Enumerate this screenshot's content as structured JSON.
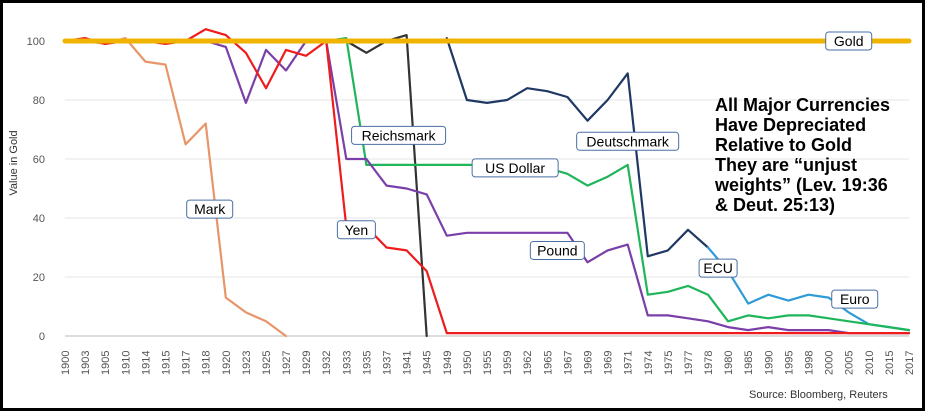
{
  "chart_data": {
    "type": "line",
    "title": "All Major Currencies Have Depreciated Relative to Gold They are “unjust weights” (Lev. 19:36 & Deut. 25:13)",
    "title_lines": [
      "All Major Currencies",
      "Have Depreciated",
      "Relative to Gold",
      "They are “unjust",
      "weights” (Lev. 19:36",
      "& Deut. 25:13)"
    ],
    "xlabel": "",
    "ylabel": "Value in Gold",
    "ylim": [
      0,
      100
    ],
    "yticks": [
      0,
      20,
      40,
      60,
      80,
      100
    ],
    "grid": true,
    "x": [
      "1900",
      "1903",
      "1905",
      "1910",
      "1914",
      "1915",
      "1917",
      "1918",
      "1920",
      "1923",
      "1925",
      "1927",
      "1929",
      "1932",
      "1933",
      "1935",
      "1937",
      "1941",
      "1945",
      "1949",
      "1950",
      "1955",
      "1959",
      "1962",
      "1965",
      "1967",
      "1969",
      "1969",
      "1971",
      "1974",
      "1975",
      "1977",
      "1978",
      "1980",
      "1985",
      "1990",
      "1995",
      "1998",
      "2000",
      "2005",
      "2010",
      "2015",
      "2017"
    ],
    "series": [
      {
        "name": "Gold",
        "color": "#f0b400",
        "values": [
          100,
          100,
          100,
          100,
          100,
          100,
          100,
          100,
          100,
          100,
          100,
          100,
          100,
          100,
          100,
          100,
          100,
          100,
          100,
          100,
          100,
          100,
          100,
          100,
          100,
          100,
          100,
          100,
          100,
          100,
          100,
          100,
          100,
          100,
          100,
          100,
          100,
          100,
          100,
          100,
          100,
          100,
          100
        ]
      },
      {
        "name": "Mark",
        "color": "#e8956a",
        "values": [
          100,
          100,
          99,
          101,
          93,
          92,
          65,
          72,
          13,
          8,
          5,
          0,
          null,
          null,
          null,
          null,
          null,
          null,
          null,
          null,
          null,
          null,
          null,
          null,
          null,
          null,
          null,
          null,
          null,
          null,
          null,
          null,
          null,
          null,
          null,
          null,
          null,
          null,
          null,
          null,
          null,
          null,
          null
        ]
      },
      {
        "name": "Reichsmark",
        "color": "#333333",
        "values": [
          null,
          null,
          null,
          null,
          null,
          null,
          null,
          null,
          null,
          null,
          null,
          null,
          null,
          null,
          100,
          96,
          100,
          102,
          0,
          null,
          null,
          null,
          null,
          null,
          null,
          null,
          null,
          null,
          null,
          null,
          null,
          null,
          null,
          null,
          null,
          null,
          null,
          null,
          null,
          null,
          null,
          null,
          null
        ]
      },
      {
        "name": "Deutschmark",
        "color": "#1f3864",
        "values": [
          null,
          null,
          null,
          null,
          null,
          null,
          null,
          null,
          null,
          null,
          null,
          null,
          null,
          null,
          null,
          null,
          null,
          null,
          null,
          101,
          80,
          79,
          80,
          84,
          83,
          81,
          73,
          80,
          89,
          27,
          29,
          36,
          30,
          null,
          null,
          null,
          null,
          null,
          null,
          null,
          null,
          null,
          null
        ]
      },
      {
        "name": "ECU",
        "color": "#2e9bd6",
        "values": [
          null,
          null,
          null,
          null,
          null,
          null,
          null,
          null,
          null,
          null,
          null,
          null,
          null,
          null,
          null,
          null,
          null,
          null,
          null,
          null,
          null,
          null,
          null,
          null,
          null,
          null,
          null,
          null,
          null,
          null,
          null,
          null,
          30,
          22,
          11,
          14,
          12,
          14,
          13,
          null,
          null,
          null,
          null
        ]
      },
      {
        "name": "Euro",
        "color": "#2e9bd6",
        "values": [
          null,
          null,
          null,
          null,
          null,
          null,
          null,
          null,
          null,
          null,
          null,
          null,
          null,
          null,
          null,
          null,
          null,
          null,
          null,
          null,
          null,
          null,
          null,
          null,
          null,
          null,
          null,
          null,
          null,
          null,
          null,
          null,
          null,
          null,
          null,
          null,
          null,
          null,
          13,
          8,
          4,
          3,
          2
        ]
      },
      {
        "name": "US Dollar",
        "color": "#1fb55a",
        "values": [
          100,
          100,
          100,
          100,
          100,
          100,
          100,
          100,
          100,
          100,
          100,
          100,
          100,
          100,
          101,
          58,
          58,
          58,
          58,
          58,
          58,
          58,
          58,
          58,
          57,
          55,
          51,
          54,
          58,
          14,
          15,
          17,
          14,
          5,
          7,
          6,
          7,
          7,
          6,
          5,
          4,
          3,
          2
        ]
      },
      {
        "name": "Pound",
        "color": "#7b3fa9",
        "values": [
          100,
          100,
          100,
          100,
          100,
          100,
          100,
          100,
          98,
          79,
          97,
          90,
          100,
          100,
          60,
          60,
          51,
          50,
          48,
          34,
          35,
          35,
          35,
          35,
          35,
          35,
          25,
          29,
          31,
          7,
          7,
          6,
          5,
          3,
          2,
          3,
          2,
          2,
          2,
          1,
          1,
          1,
          1
        ]
      },
      {
        "name": "Yen",
        "color": "#ee1c1c",
        "values": [
          100,
          101,
          99,
          100,
          100,
          99,
          100,
          104,
          102,
          96,
          84,
          97,
          95,
          100,
          37,
          37,
          30,
          29,
          22,
          1,
          1,
          1,
          1,
          1,
          1,
          1,
          1,
          1,
          1,
          1,
          1,
          1,
          1,
          1,
          1,
          1,
          1,
          1,
          1,
          1,
          1,
          1,
          1
        ]
      }
    ],
    "callouts": [
      "Gold",
      "Mark",
      "Reichsmark",
      "Yen",
      "US Dollar",
      "Deutschmark",
      "Pound",
      "ECU",
      "Euro"
    ],
    "source": "Source: Bloomberg, Reuters"
  }
}
